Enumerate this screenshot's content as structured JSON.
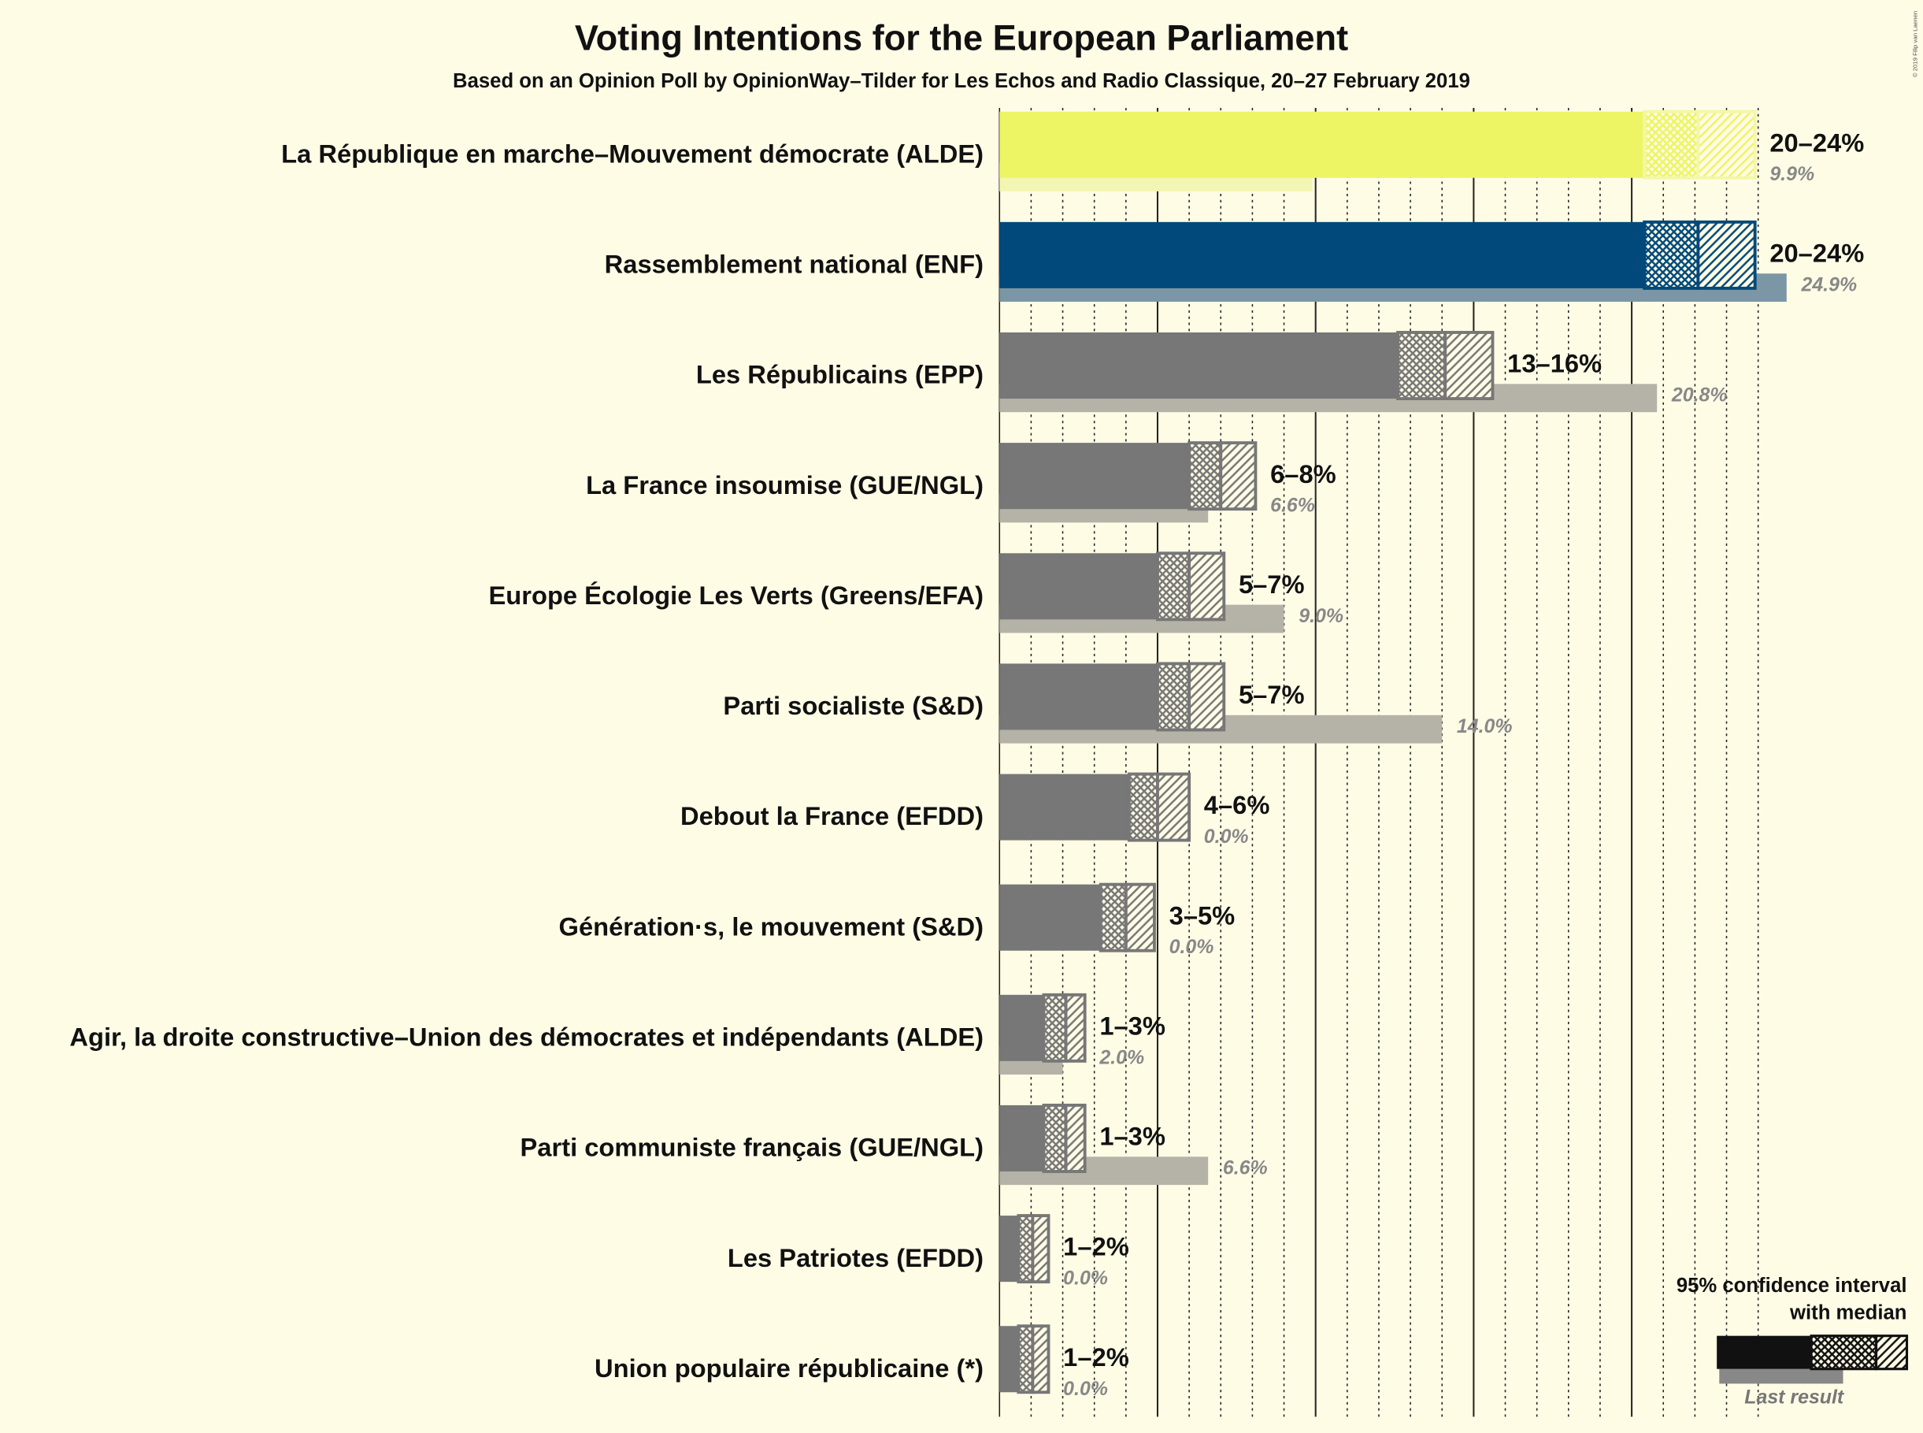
{
  "chart_data": {
    "type": "range_bar",
    "title": "Voting Intentions for the European Parliament",
    "subtitle": "Based on an Opinion Poll by OpinionWay–Tilder for Les Echos and Radio Classique, 20–27 February 2019",
    "copyright": "© 2019 Filip van Laenen",
    "categories": [
      "La République en marche–Mouvement démocrate (ALDE)",
      "Rassemblement national (ENF)",
      "Les Républicains (EPP)",
      "La France insoumise (GUE/NGL)",
      "Europe Écologie Les Verts (Greens/EFA)",
      "Parti socialiste (S&D)",
      "Debout la France (EFDD)",
      "Génération·s, le mouvement (S&D)",
      "Agir, la droite constructive–Union des démocrates et indépendants (ALDE)",
      "Parti communiste français (GUE/NGL)",
      "Les Patriotes (EFDD)",
      "Union populaire républicaine (*)"
    ],
    "colors": [
      "#edf564",
      "#00497a",
      "#777777",
      "#777777",
      "#777777",
      "#777777",
      "#777777",
      "#777777",
      "#777777",
      "#777777",
      "#777777",
      "#777777"
    ],
    "last_colors": [
      "#f3f6b3",
      "#7b96a5",
      "#b5b3a8",
      "#b5b3a8",
      "#b5b3a8",
      "#b5b3a8",
      "#b5b3a8",
      "#b5b3a8",
      "#b5b3a8",
      "#b5b3a8",
      "#b5b3a8",
      "#b5b3a8"
    ],
    "low": [
      20.4,
      20.4,
      12.6,
      6.0,
      5.0,
      5.0,
      4.1,
      3.2,
      1.4,
      1.4,
      0.6,
      0.6
    ],
    "median": [
      22.1,
      22.1,
      14.1,
      7.0,
      6.0,
      6.0,
      5.0,
      4.0,
      2.1,
      2.1,
      1.05,
      1.05
    ],
    "high": [
      23.9,
      23.9,
      15.6,
      8.1,
      7.1,
      7.1,
      6.0,
      4.9,
      2.7,
      2.7,
      1.55,
      1.55
    ],
    "range_labels": [
      "20–24%",
      "20–24%",
      "13–16%",
      "6–8%",
      "5–7%",
      "5–7%",
      "4–6%",
      "3–5%",
      "1–3%",
      "1–3%",
      "1–2%",
      "1–2%"
    ],
    "last_result": {
      "name": "Last result",
      "values": [
        9.9,
        24.9,
        20.8,
        6.6,
        9.0,
        14.0,
        0.0,
        0.0,
        2.0,
        6.6,
        0.0,
        0.0
      ],
      "value_labels": [
        "9.9%",
        "24.9%",
        "20.8%",
        "6.6%",
        "9.0%",
        "14.0%",
        "0.0%",
        "0.0%",
        "2.0%",
        "6.6%",
        "0.0%",
        "0.0%"
      ]
    },
    "ci_legend": [
      "95% confidence interval",
      "with median"
    ],
    "xlim": [
      0,
      25
    ],
    "xticks": [
      5,
      10,
      15,
      20
    ],
    "minor_xticks": [
      1,
      2,
      3,
      4,
      6,
      7,
      8,
      9,
      11,
      12,
      13,
      14,
      16,
      17,
      18,
      19,
      21,
      22,
      23,
      24
    ],
    "grid": true
  }
}
